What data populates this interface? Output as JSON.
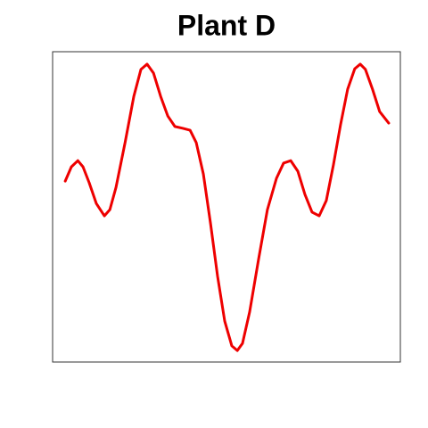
{
  "chart_data": {
    "type": "line",
    "title": "Plant D",
    "color": "#ee0000",
    "xlim": [
      -3.9,
      103.6
    ],
    "ylim": [
      0,
      100
    ],
    "x": [
      0,
      1.9,
      3.9,
      5.5,
      7.4,
      9.6,
      12.1,
      13.8,
      15.7,
      18.5,
      21.2,
      23.4,
      25.3,
      27.3,
      29.5,
      31.7,
      33.9,
      36.4,
      38.6,
      40.5,
      42.7,
      44.9,
      47.1,
      49.3,
      51.5,
      53.2,
      54.8,
      57.0,
      59.8,
      62.5,
      65.3,
      67.5,
      69.7,
      71.9,
      74.1,
      76.3,
      78.5,
      80.7,
      82.9,
      85.1,
      87.3,
      89.5,
      91.2,
      92.8,
      95.0,
      97.2,
      100
    ],
    "values": [
      58.3,
      62.9,
      64.9,
      62.9,
      57.8,
      51.1,
      47.1,
      49.1,
      56.3,
      70.7,
      85.6,
      94.3,
      96.0,
      93.1,
      85.6,
      79.3,
      75.9,
      75.3,
      74.7,
      70.7,
      60.6,
      44.8,
      27.6,
      13.2,
      5.2,
      3.7,
      6.0,
      16.1,
      33.3,
      49.1,
      59.2,
      64.1,
      64.9,
      61.5,
      54.0,
      48.3,
      47.1,
      52.0,
      63.5,
      76.4,
      87.9,
      94.5,
      96.0,
      94.3,
      87.9,
      80.7,
      77.0
    ]
  }
}
